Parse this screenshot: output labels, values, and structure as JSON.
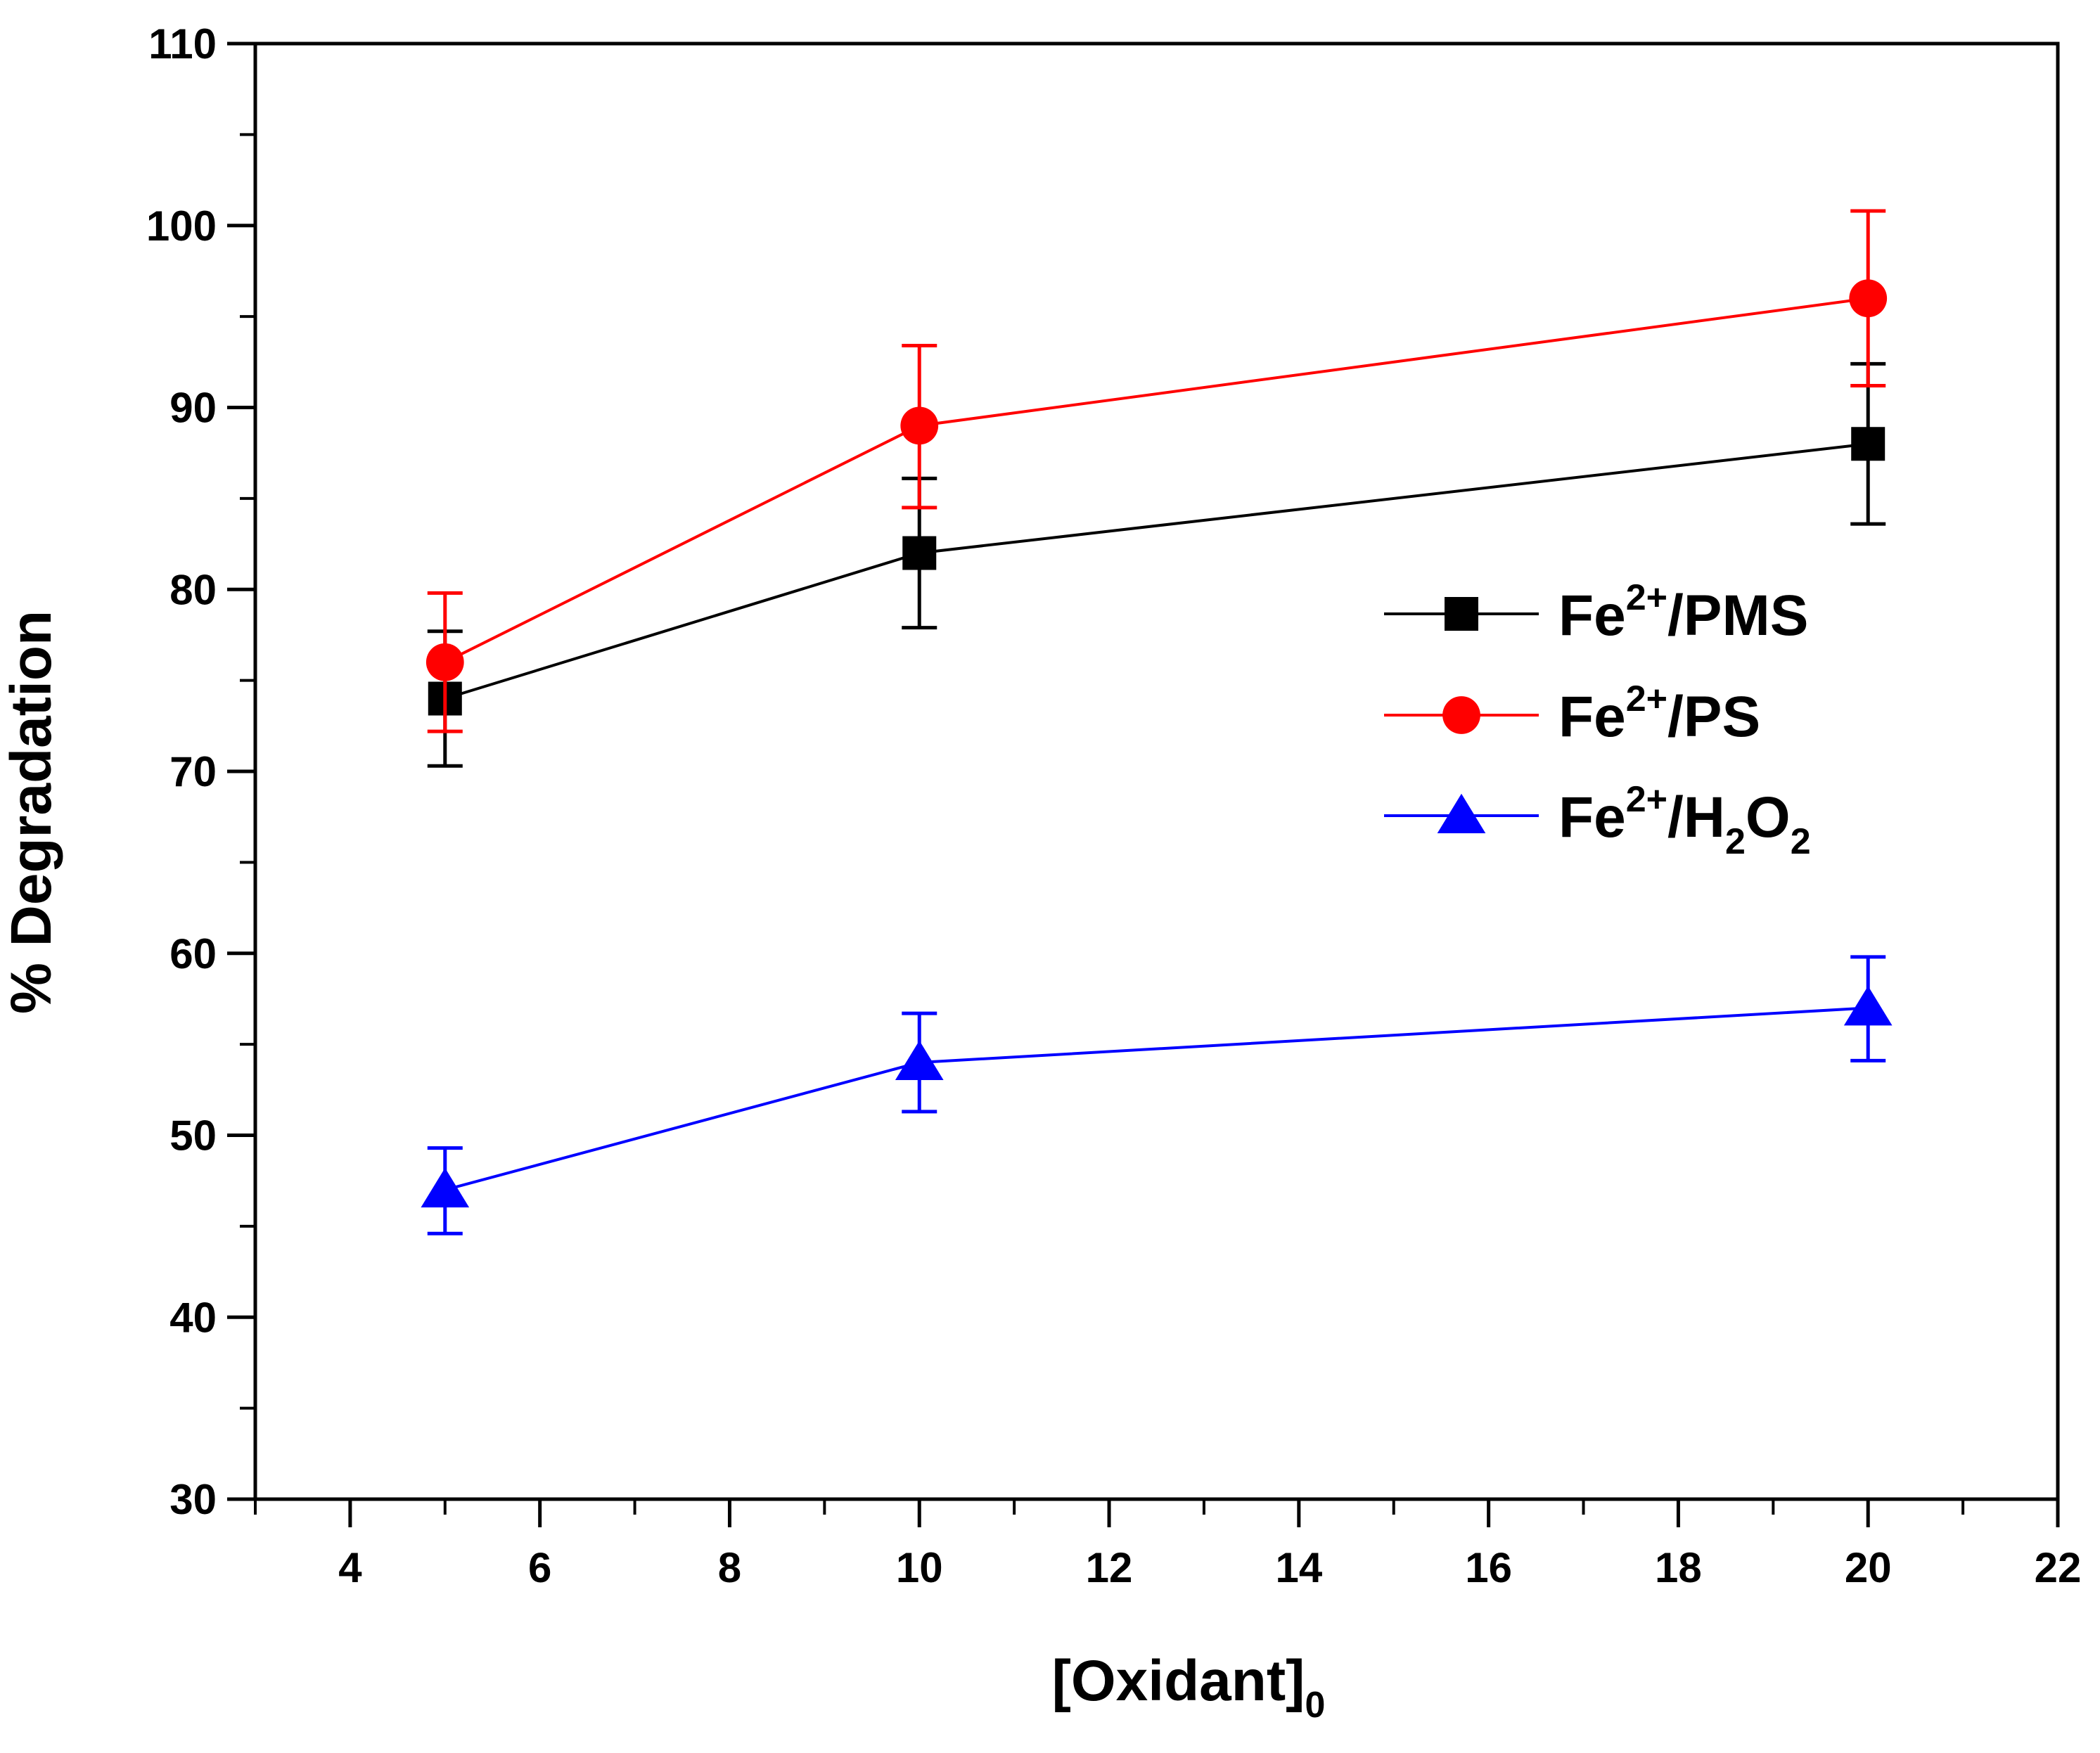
{
  "chart_data": {
    "type": "line",
    "title": "",
    "xlabel": {
      "main": "[Oxidant]",
      "sub": "0"
    },
    "ylabel": "% Degradation",
    "xlim": [
      3,
      22
    ],
    "ylim": [
      30,
      110
    ],
    "xticks": [
      4,
      6,
      8,
      10,
      12,
      14,
      16,
      18,
      20,
      22
    ],
    "yticks": [
      30,
      40,
      50,
      60,
      70,
      80,
      90,
      100,
      110
    ],
    "grid": false,
    "legend_position": "right-middle",
    "series": [
      {
        "name": "Fe2+/PMS",
        "legend": {
          "base": "Fe",
          "sup": "2+",
          "rest": "/PMS"
        },
        "color": "#000000",
        "marker": "square",
        "x": [
          5,
          10,
          20
        ],
        "y": [
          74,
          82,
          88
        ],
        "err_upper": [
          77.7,
          86.1,
          92.4
        ],
        "err_lower": [
          70.3,
          77.9,
          83.6
        ]
      },
      {
        "name": "Fe2+/PS",
        "legend": {
          "base": "Fe",
          "sup": "2+",
          "rest": "/PS"
        },
        "color": "#ff0000",
        "marker": "circle",
        "x": [
          5,
          10,
          20
        ],
        "y": [
          76,
          89,
          96
        ],
        "err_upper": [
          79.8,
          93.4,
          100.8
        ],
        "err_lower": [
          72.2,
          84.5,
          91.2
        ]
      },
      {
        "name": "Fe2+/H2O2",
        "legend": {
          "base": "Fe",
          "sup": "2+",
          "mid": "/H",
          "sub1": "2",
          "mid2": "O",
          "sub2": "2"
        },
        "color": "#0000ff",
        "marker": "triangle",
        "x": [
          5,
          10,
          20
        ],
        "y": [
          47,
          54,
          57
        ],
        "err_upper": [
          49.3,
          56.7,
          59.8
        ],
        "err_lower": [
          44.6,
          51.3,
          54.1
        ]
      }
    ]
  }
}
